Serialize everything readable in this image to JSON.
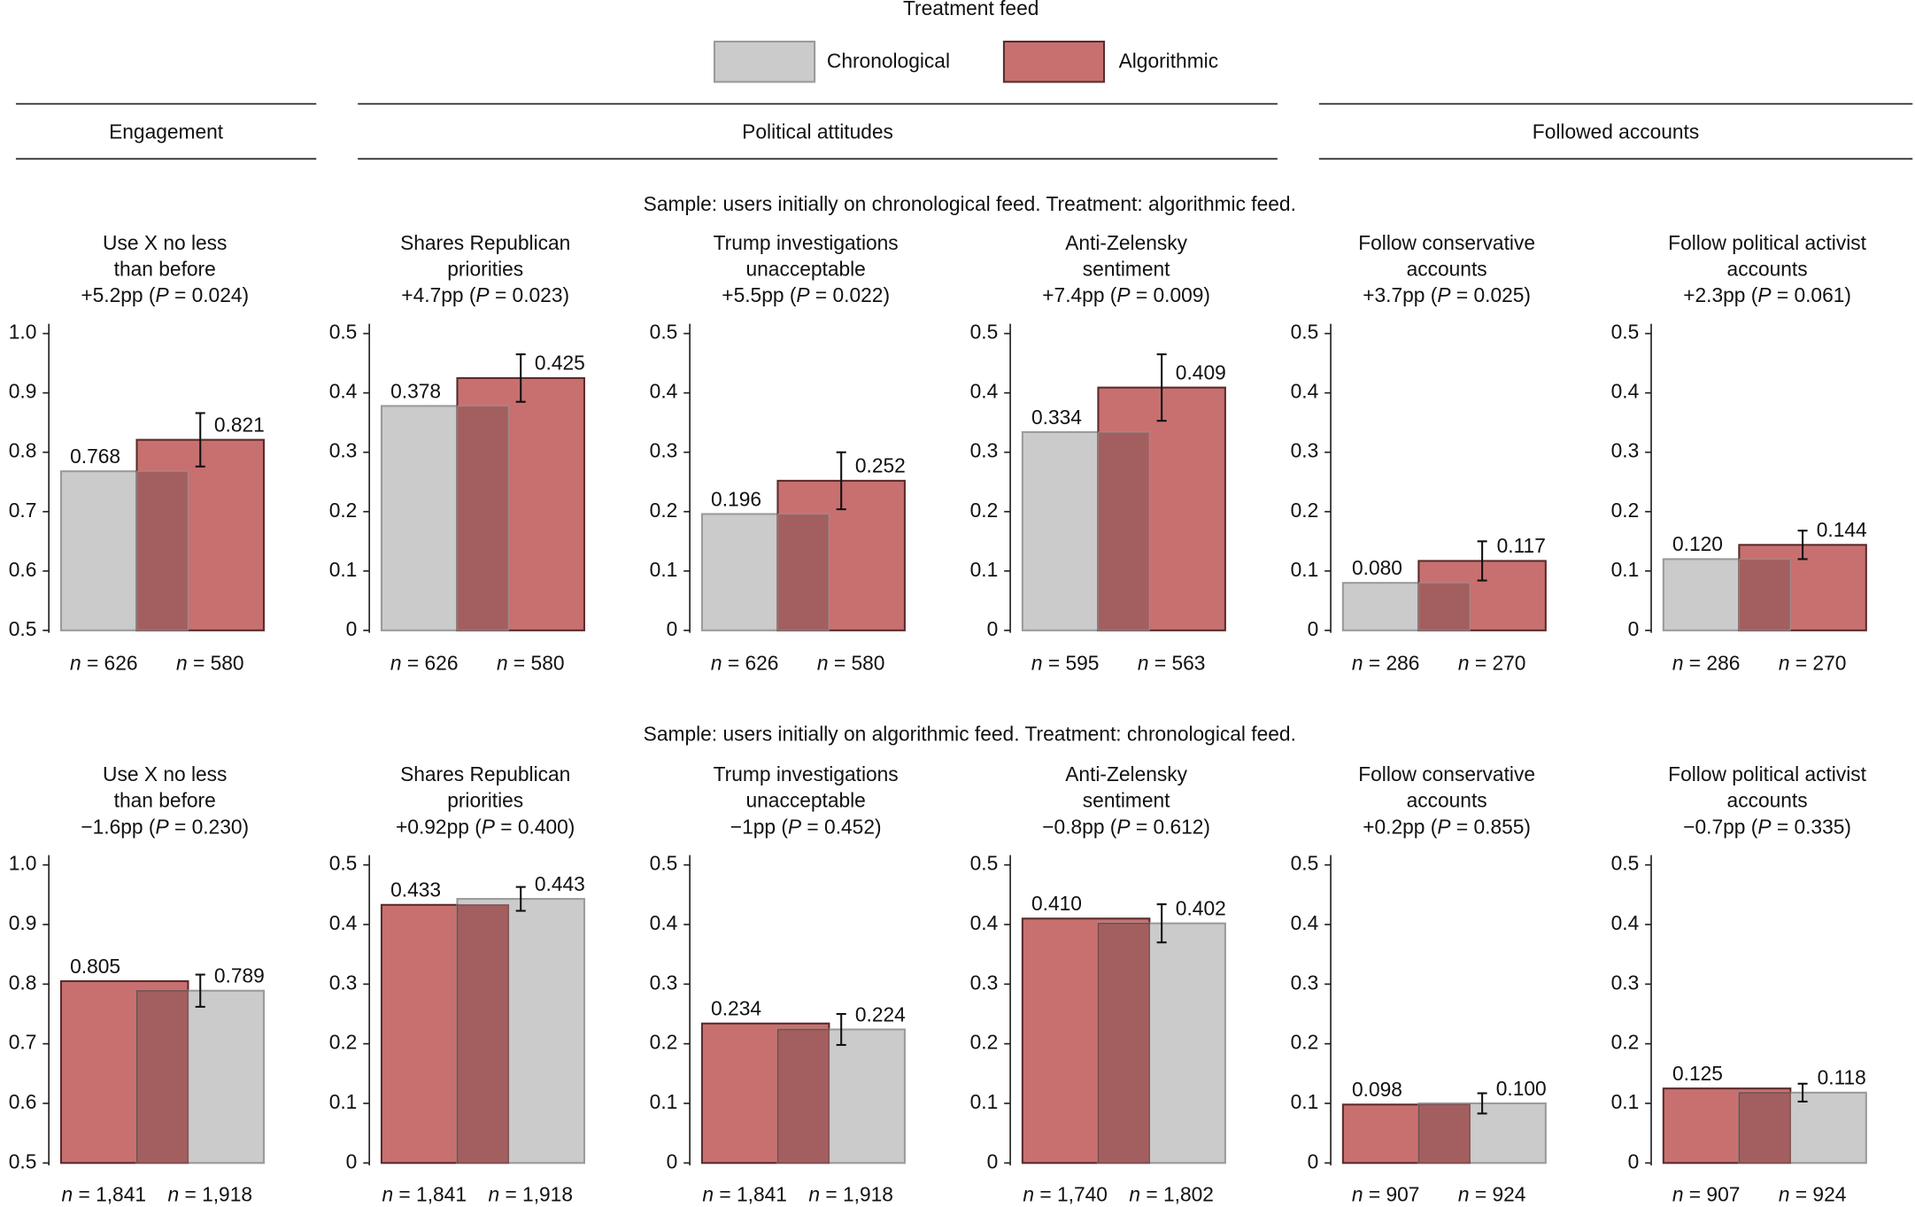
{
  "legend": {
    "title": "Treatment feed",
    "items": [
      {
        "name": "Chronological",
        "color": "#cbcbcb",
        "edgecolor": "#9a9a9a"
      },
      {
        "name": "Algorithmic",
        "color": "#c87070",
        "edgecolor": "#5b2b2b"
      }
    ]
  },
  "groups": [
    "Engagement",
    "Political attitudes",
    "Followed accounts"
  ],
  "samples": [
    "Sample: users initially on chronological feed. Treatment: algorithmic feed.",
    "Sample: users initially on algorithmic feed. Treatment: chronological feed."
  ],
  "chart_data": [
    {
      "type": "bar",
      "title": [
        "Use X no less",
        "than before"
      ],
      "subtitle": "+5.2pp (P = 0.024)",
      "categories": [
        "n = 626",
        "n = 580"
      ],
      "values": [
        0.768,
        0.821
      ],
      "value_labels": [
        "0.768",
        "0.821"
      ],
      "errors": [
        null,
        0.045
      ],
      "colors": [
        "#cbcbcb",
        "#c87070"
      ],
      "edgecolors": [
        "#9a9a9a",
        "#5b2b2b"
      ],
      "overlap_color": "#a35f5f",
      "ylim": [
        0.5,
        1.0
      ],
      "yticks": [
        0.5,
        0.6,
        0.7,
        0.8,
        0.9,
        {
          "value": 1,
          "label": "1.0"
        }
      ]
    },
    {
      "type": "bar",
      "title": [
        "Shares Republican",
        "priorities"
      ],
      "subtitle": "+4.7pp (P = 0.023)",
      "categories": [
        "n = 626",
        "n = 580"
      ],
      "values": [
        0.378,
        0.425
      ],
      "value_labels": [
        "0.378",
        "0.425"
      ],
      "errors": [
        null,
        0.04
      ],
      "colors": [
        "#cbcbcb",
        "#c87070"
      ],
      "edgecolors": [
        "#9a9a9a",
        "#5b2b2b"
      ],
      "overlap_color": "#a35f5f",
      "ylim": [
        0,
        0.5
      ],
      "yticks": [
        0,
        0.1,
        0.2,
        0.3,
        0.4,
        0.5
      ]
    },
    {
      "type": "bar",
      "title": [
        "Trump investigations",
        "unacceptable"
      ],
      "subtitle": "+5.5pp (P = 0.022)",
      "categories": [
        "n = 626",
        "n = 580"
      ],
      "values": [
        0.196,
        0.252
      ],
      "value_labels": [
        "0.196",
        "0.252"
      ],
      "errors": [
        null,
        0.048
      ],
      "colors": [
        "#cbcbcb",
        "#c87070"
      ],
      "edgecolors": [
        "#9a9a9a",
        "#5b2b2b"
      ],
      "overlap_color": "#a35f5f",
      "ylim": [
        0,
        0.5
      ],
      "yticks": [
        0,
        0.1,
        0.2,
        0.3,
        0.4,
        0.5
      ]
    },
    {
      "type": "bar",
      "title": [
        "Anti-Zelensky",
        "sentiment"
      ],
      "subtitle": "+7.4pp (P = 0.009)",
      "categories": [
        "n = 595",
        "n = 563"
      ],
      "values": [
        0.334,
        0.409
      ],
      "value_labels": [
        "0.334",
        "0.409"
      ],
      "errors": [
        null,
        0.056
      ],
      "colors": [
        "#cbcbcb",
        "#c87070"
      ],
      "edgecolors": [
        "#9a9a9a",
        "#5b2b2b"
      ],
      "overlap_color": "#a35f5f",
      "ylim": [
        0,
        0.5
      ],
      "yticks": [
        0,
        0.1,
        0.2,
        0.3,
        0.4,
        0.5
      ]
    },
    {
      "type": "bar",
      "title": [
        "Follow conservative",
        "accounts"
      ],
      "subtitle": "+3.7pp (P = 0.025)",
      "categories": [
        "n = 286",
        "n = 270"
      ],
      "values": [
        0.08,
        0.117
      ],
      "value_labels": [
        "0.080",
        "0.117"
      ],
      "errors": [
        null,
        0.033
      ],
      "colors": [
        "#cbcbcb",
        "#c87070"
      ],
      "edgecolors": [
        "#9a9a9a",
        "#5b2b2b"
      ],
      "overlap_color": "#a35f5f",
      "ylim": [
        0,
        0.5
      ],
      "yticks": [
        0,
        0.1,
        0.2,
        0.3,
        0.4,
        0.5
      ]
    },
    {
      "type": "bar",
      "title": [
        "Follow political activist",
        "accounts"
      ],
      "subtitle": "+2.3pp (P = 0.061)",
      "categories": [
        "n = 286",
        "n = 270"
      ],
      "values": [
        0.12,
        0.144
      ],
      "value_labels": [
        "0.120",
        "0.144"
      ],
      "errors": [
        null,
        0.024
      ],
      "colors": [
        "#cbcbcb",
        "#c87070"
      ],
      "edgecolors": [
        "#9a9a9a",
        "#5b2b2b"
      ],
      "overlap_color": "#a35f5f",
      "ylim": [
        0,
        0.5
      ],
      "yticks": [
        0,
        0.1,
        0.2,
        0.3,
        0.4,
        0.5
      ]
    },
    {
      "type": "bar",
      "title": [
        "Use X no less",
        "than before"
      ],
      "subtitle": "−1.6pp (P = 0.230)",
      "categories": [
        "n = 1,841",
        "n = 1,918"
      ],
      "values": [
        0.805,
        0.789
      ],
      "value_labels": [
        "0.805",
        "0.789"
      ],
      "errors": [
        null,
        0.027
      ],
      "colors": [
        "#c87070",
        "#cbcbcb"
      ],
      "edgecolors": [
        "#5b2b2b",
        "#9a9a9a"
      ],
      "overlap_color": "#a35f5f",
      "ylim": [
        0.5,
        1.0
      ],
      "yticks": [
        0.5,
        0.6,
        0.7,
        0.8,
        0.9,
        {
          "value": 1,
          "label": "1.0"
        }
      ]
    },
    {
      "type": "bar",
      "title": [
        "Shares Republican",
        "priorities"
      ],
      "subtitle": "+0.92pp (P = 0.400)",
      "categories": [
        "n = 1,841",
        "n = 1,918"
      ],
      "values": [
        0.433,
        0.443
      ],
      "value_labels": [
        "0.433",
        "0.443"
      ],
      "errors": [
        null,
        0.02
      ],
      "colors": [
        "#c87070",
        "#cbcbcb"
      ],
      "edgecolors": [
        "#5b2b2b",
        "#9a9a9a"
      ],
      "overlap_color": "#a35f5f",
      "ylim": [
        0,
        0.5
      ],
      "yticks": [
        0,
        0.1,
        0.2,
        0.3,
        0.4,
        0.5
      ]
    },
    {
      "type": "bar",
      "title": [
        "Trump investigations",
        "unacceptable"
      ],
      "subtitle": "−1pp (P = 0.452)",
      "categories": [
        "n = 1,841",
        "n = 1,918"
      ],
      "values": [
        0.234,
        0.224
      ],
      "value_labels": [
        "0.234",
        "0.224"
      ],
      "errors": [
        null,
        0.026
      ],
      "colors": [
        "#c87070",
        "#cbcbcb"
      ],
      "edgecolors": [
        "#5b2b2b",
        "#9a9a9a"
      ],
      "overlap_color": "#a35f5f",
      "ylim": [
        0,
        0.5
      ],
      "yticks": [
        0,
        0.1,
        0.2,
        0.3,
        0.4,
        0.5
      ]
    },
    {
      "type": "bar",
      "title": [
        "Anti-Zelensky",
        "sentiment"
      ],
      "subtitle": "−0.8pp (P = 0.612)",
      "categories": [
        "n = 1,740",
        "n = 1,802"
      ],
      "values": [
        0.41,
        0.402
      ],
      "value_labels": [
        "0.410",
        "0.402"
      ],
      "errors": [
        null,
        0.032
      ],
      "colors": [
        "#c87070",
        "#cbcbcb"
      ],
      "edgecolors": [
        "#5b2b2b",
        "#9a9a9a"
      ],
      "overlap_color": "#a35f5f",
      "ylim": [
        0,
        0.5
      ],
      "yticks": [
        0,
        0.1,
        0.2,
        0.3,
        0.4,
        0.5
      ]
    },
    {
      "type": "bar",
      "title": [
        "Follow conservative",
        "accounts"
      ],
      "subtitle": "+0.2pp (P = 0.855)",
      "categories": [
        "n = 907",
        "n = 924"
      ],
      "values": [
        0.098,
        0.1
      ],
      "value_labels": [
        "0.098",
        "0.100"
      ],
      "errors": [
        null,
        0.017
      ],
      "colors": [
        "#c87070",
        "#cbcbcb"
      ],
      "edgecolors": [
        "#5b2b2b",
        "#9a9a9a"
      ],
      "overlap_color": "#a35f5f",
      "ylim": [
        0,
        0.5
      ],
      "yticks": [
        0,
        0.1,
        0.2,
        0.3,
        0.4,
        0.5
      ]
    },
    {
      "type": "bar",
      "title": [
        "Follow political activist",
        "accounts"
      ],
      "subtitle": "−0.7pp (P = 0.335)",
      "categories": [
        "n = 907",
        "n = 924"
      ],
      "values": [
        0.125,
        0.118
      ],
      "value_labels": [
        "0.125",
        "0.118"
      ],
      "errors": [
        null,
        0.015
      ],
      "colors": [
        "#c87070",
        "#cbcbcb"
      ],
      "edgecolors": [
        "#5b2b2b",
        "#9a9a9a"
      ],
      "overlap_color": "#a35f5f",
      "ylim": [
        0,
        0.5
      ],
      "yticks": [
        0,
        0.1,
        0.2,
        0.3,
        0.4,
        0.5
      ]
    }
  ]
}
